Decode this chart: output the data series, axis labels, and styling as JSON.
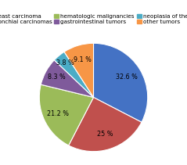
{
  "labels": [
    "breast carcinoma",
    "bronchial carcinomas",
    "hematologic malignancies",
    "gastrointestinal tumors",
    "neoplasia of the skin",
    "other tumors"
  ],
  "sizes": [
    32.6,
    25.0,
    21.2,
    8.3,
    3.8,
    9.1
  ],
  "colors": [
    "#4472C4",
    "#C0504D",
    "#9BBB59",
    "#7F5A9B",
    "#4BACC6",
    "#F79646"
  ],
  "pct_labels": [
    "32.6 %",
    "25 %",
    "21.2 %",
    "8.3 %",
    "3.8 %",
    "9.1 %"
  ],
  "startangle": 90,
  "background_color": "#ffffff",
  "legend_fontsize": 5.2,
  "pct_fontsize": 5.8,
  "pct_distances": [
    0.72,
    0.72,
    0.72,
    0.78,
    0.82,
    0.72
  ]
}
